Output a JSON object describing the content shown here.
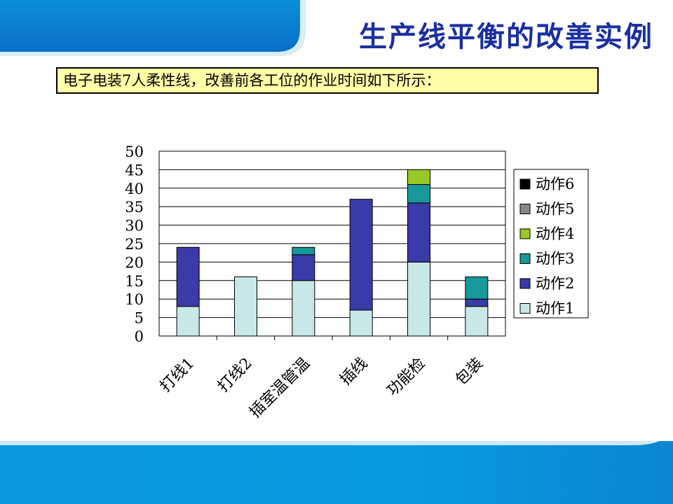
{
  "slide": {
    "title": "生产线平衡的改善实例",
    "note": "电子电装7人柔性线，改善前各工位的作业时间如下所示："
  },
  "chart_data": {
    "type": "bar",
    "stacked": true,
    "categories": [
      "打线1",
      "打线2",
      "插室温管温",
      "插线",
      "功能检",
      "包装"
    ],
    "series": [
      {
        "name": "动作1",
        "color": "#c8e8e8",
        "values": [
          8,
          16,
          15,
          7,
          20,
          8
        ]
      },
      {
        "name": "动作2",
        "color": "#3a3aa8",
        "values": [
          16,
          0,
          7,
          30,
          16,
          2
        ]
      },
      {
        "name": "动作3",
        "color": "#189898",
        "values": [
          0,
          0,
          2,
          0,
          5,
          6
        ]
      },
      {
        "name": "动作4",
        "color": "#98c828",
        "values": [
          0,
          0,
          0,
          0,
          4,
          0
        ]
      },
      {
        "name": "动作5",
        "color": "#888888",
        "values": [
          0,
          0,
          0,
          0,
          0,
          0
        ]
      },
      {
        "name": "动作6",
        "color": "#000000",
        "values": [
          0,
          0,
          0,
          0,
          0,
          0
        ]
      }
    ],
    "ylim": [
      0,
      50
    ],
    "yticks": [
      "0",
      "5",
      "10",
      "15",
      "20",
      "25",
      "30",
      "35",
      "40",
      "45",
      "50"
    ],
    "grid": true,
    "legend_position": "right"
  }
}
